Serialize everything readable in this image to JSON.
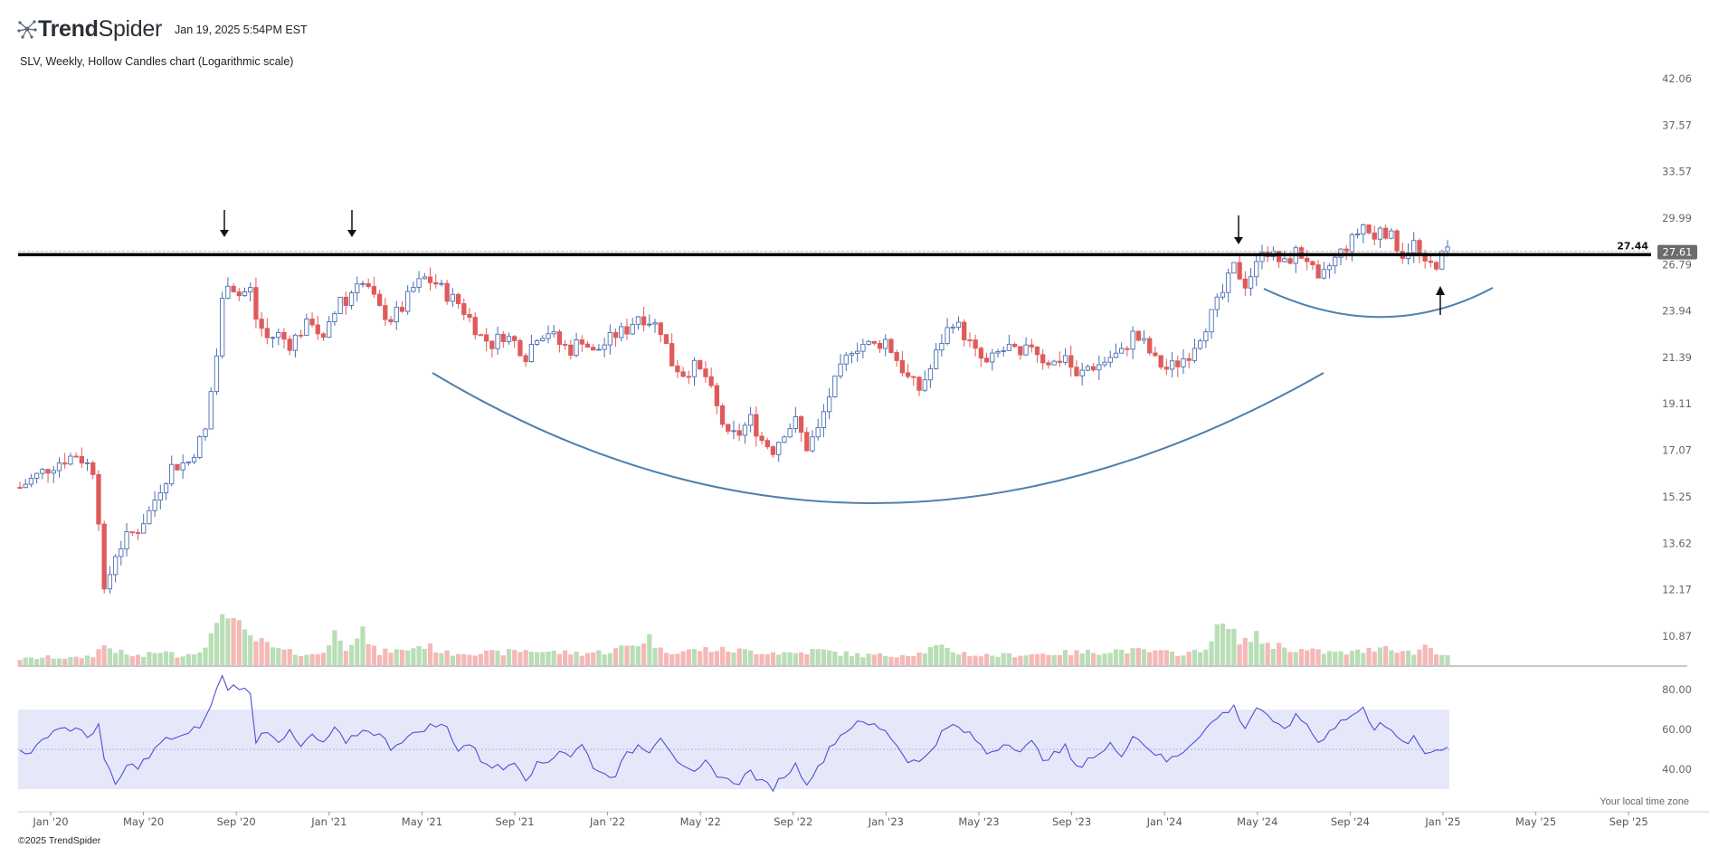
{
  "header": {
    "brand_bold": "Trend",
    "brand_light": "Spider",
    "timestamp": "Jan 19, 2025 5:54PM EST",
    "chart_title": "SLV, Weekly, Hollow Candles chart (Logarithmic scale)"
  },
  "footer": {
    "copyright": "©2025 TrendSpider",
    "timezone_note": "Your local time zone"
  },
  "colors": {
    "up": "#4a6fb0",
    "down": "#e05a5a",
    "vol_up": "#b9deb6",
    "vol_down": "#f5b8b8",
    "rsi_line": "#4a50d6",
    "rsi_band": "#e6e8fa",
    "cup_curve": "#4f7fab",
    "resistance": "#000000",
    "price_tag": "#6b6b6b"
  },
  "chart_data": {
    "type": "candlestick",
    "title": "SLV, Weekly, Hollow Candles chart (Logarithmic scale)",
    "scale": "log",
    "y_ticks": [
      "42.06",
      "37.57",
      "33.57",
      "29.99",
      "26.79",
      "23.94",
      "21.39",
      "19.11",
      "17.07",
      "15.25",
      "13.62",
      "12.17",
      "10.87"
    ],
    "y_tick_values": [
      42.06,
      37.57,
      33.57,
      29.99,
      26.79,
      23.94,
      21.39,
      19.11,
      17.07,
      15.25,
      13.62,
      12.17,
      10.87
    ],
    "x_ticks": [
      "Jan '20",
      "May '20",
      "Sep '20",
      "Jan '21",
      "May '21",
      "Sep '21",
      "Jan '22",
      "May '22",
      "Sep '22",
      "Jan '23",
      "May '23",
      "Sep '23",
      "Jan '24",
      "May '24",
      "Sep '24",
      "Jan '25",
      "May '25",
      "Sep '25"
    ],
    "resistance_level": 27.44,
    "resistance_label": "27.44",
    "last_price": 27.61,
    "last_price_label": "27.61",
    "rsi_ticks": [
      "80.00",
      "60.00",
      "40.00"
    ],
    "rsi_tick_values": [
      80,
      60,
      40
    ],
    "rsi_band": [
      70,
      30
    ],
    "rsi_mid": 50,
    "price_anchors": [
      [
        0,
        15.6
      ],
      [
        4,
        16.2
      ],
      [
        7,
        16.6
      ],
      [
        10,
        16.9
      ],
      [
        13,
        16.3
      ],
      [
        14,
        14.5
      ],
      [
        15,
        12.0
      ],
      [
        17,
        13.3
      ],
      [
        19,
        13.8
      ],
      [
        21,
        14.1
      ],
      [
        23,
        14.7
      ],
      [
        25,
        15.6
      ],
      [
        27,
        16.4
      ],
      [
        30,
        16.6
      ],
      [
        33,
        17.9
      ],
      [
        35,
        21.5
      ],
      [
        36,
        24.5
      ],
      [
        37,
        25.8
      ],
      [
        39,
        24.9
      ],
      [
        41,
        25.2
      ],
      [
        42,
        23.5
      ],
      [
        44,
        22.4
      ],
      [
        46,
        22.6
      ],
      [
        48,
        22.1
      ],
      [
        50,
        22.8
      ],
      [
        52,
        23.4
      ],
      [
        54,
        22.2
      ],
      [
        56,
        23.8
      ],
      [
        57,
        24.9
      ],
      [
        58,
        24.3
      ],
      [
        60,
        25.9
      ],
      [
        62,
        25.2
      ],
      [
        64,
        24.0
      ],
      [
        66,
        23.5
      ],
      [
        68,
        24.1
      ],
      [
        70,
        25.3
      ],
      [
        72,
        25.9
      ],
      [
        74,
        25.6
      ],
      [
        76,
        24.9
      ],
      [
        78,
        24.4
      ],
      [
        80,
        23.5
      ],
      [
        82,
        22.5
      ],
      [
        84,
        22.1
      ],
      [
        86,
        22.6
      ],
      [
        88,
        22.2
      ],
      [
        90,
        21.5
      ],
      [
        92,
        22.6
      ],
      [
        94,
        22.8
      ],
      [
        96,
        22.1
      ],
      [
        98,
        21.8
      ],
      [
        100,
        22.4
      ],
      [
        102,
        21.6
      ],
      [
        104,
        22.1
      ],
      [
        106,
        22.6
      ],
      [
        108,
        22.9
      ],
      [
        110,
        23.7
      ],
      [
        112,
        23.4
      ],
      [
        114,
        22.9
      ],
      [
        116,
        21.1
      ],
      [
        118,
        20.6
      ],
      [
        120,
        20.9
      ],
      [
        122,
        20.4
      ],
      [
        124,
        18.9
      ],
      [
        126,
        17.6
      ],
      [
        128,
        17.8
      ],
      [
        130,
        18.4
      ],
      [
        132,
        17.5
      ],
      [
        134,
        17.1
      ],
      [
        136,
        17.9
      ],
      [
        138,
        18.3
      ],
      [
        140,
        17.2
      ],
      [
        142,
        17.9
      ],
      [
        144,
        19.5
      ],
      [
        146,
        20.7
      ],
      [
        148,
        21.9
      ],
      [
        150,
        22.1
      ],
      [
        152,
        22.0
      ],
      [
        154,
        22.3
      ],
      [
        156,
        21.3
      ],
      [
        158,
        20.3
      ],
      [
        160,
        19.8
      ],
      [
        162,
        20.8
      ],
      [
        164,
        22.3
      ],
      [
        166,
        23.4
      ],
      [
        168,
        22.6
      ],
      [
        170,
        21.6
      ],
      [
        172,
        21.0
      ],
      [
        174,
        21.6
      ],
      [
        176,
        21.9
      ],
      [
        178,
        21.3
      ],
      [
        180,
        22.1
      ],
      [
        182,
        21.3
      ],
      [
        184,
        21.1
      ],
      [
        186,
        21.5
      ],
      [
        188,
        20.3
      ],
      [
        190,
        20.9
      ],
      [
        192,
        21.0
      ],
      [
        194,
        21.4
      ],
      [
        196,
        21.6
      ],
      [
        198,
        22.6
      ],
      [
        200,
        22.1
      ],
      [
        202,
        21.2
      ],
      [
        204,
        20.8
      ],
      [
        206,
        21.1
      ],
      [
        208,
        21.6
      ],
      [
        210,
        22.6
      ],
      [
        212,
        23.7
      ],
      [
        214,
        25.0
      ],
      [
        216,
        26.6
      ],
      [
        218,
        25.6
      ],
      [
        220,
        26.7
      ],
      [
        221,
        28.0
      ],
      [
        223,
        27.3
      ],
      [
        225,
        26.8
      ],
      [
        227,
        27.6
      ],
      [
        229,
        27.2
      ],
      [
        231,
        25.5
      ],
      [
        233,
        26.7
      ],
      [
        235,
        27.6
      ],
      [
        237,
        28.4
      ],
      [
        239,
        29.5
      ],
      [
        241,
        28.4
      ],
      [
        242,
        29.5
      ],
      [
        244,
        28.6
      ],
      [
        246,
        27.5
      ],
      [
        248,
        28.2
      ],
      [
        250,
        26.6
      ],
      [
        252,
        26.9
      ],
      [
        254,
        27.7
      ]
    ],
    "rsi_anchors": [
      [
        0,
        51
      ],
      [
        2,
        47
      ],
      [
        5,
        58
      ],
      [
        7,
        61
      ],
      [
        10,
        60
      ],
      [
        12,
        56
      ],
      [
        14,
        63
      ],
      [
        15,
        44
      ],
      [
        17,
        32
      ],
      [
        19,
        41
      ],
      [
        21,
        42
      ],
      [
        23,
        46
      ],
      [
        25,
        53
      ],
      [
        27,
        56
      ],
      [
        30,
        57
      ],
      [
        33,
        65
      ],
      [
        35,
        80
      ],
      [
        36,
        86
      ],
      [
        37,
        81
      ],
      [
        39,
        82
      ],
      [
        41,
        77
      ],
      [
        42,
        55
      ],
      [
        44,
        60
      ],
      [
        46,
        55
      ],
      [
        48,
        58
      ],
      [
        50,
        51
      ],
      [
        52,
        57
      ],
      [
        54,
        52
      ],
      [
        56,
        61
      ],
      [
        58,
        52
      ],
      [
        60,
        58
      ],
      [
        62,
        60
      ],
      [
        64,
        57
      ],
      [
        66,
        51
      ],
      [
        68,
        55
      ],
      [
        70,
        57
      ],
      [
        72,
        61
      ],
      [
        74,
        62
      ],
      [
        76,
        61
      ],
      [
        78,
        50
      ],
      [
        80,
        53
      ],
      [
        82,
        45
      ],
      [
        84,
        42
      ],
      [
        86,
        40
      ],
      [
        88,
        45
      ],
      [
        90,
        36
      ],
      [
        92,
        42
      ],
      [
        94,
        44
      ],
      [
        96,
        50
      ],
      [
        98,
        47
      ],
      [
        100,
        52
      ],
      [
        102,
        42
      ],
      [
        104,
        37
      ],
      [
        106,
        38
      ],
      [
        108,
        47
      ],
      [
        110,
        52
      ],
      [
        112,
        50
      ],
      [
        114,
        57
      ],
      [
        116,
        49
      ],
      [
        118,
        40
      ],
      [
        120,
        37
      ],
      [
        122,
        43
      ],
      [
        124,
        38
      ],
      [
        126,
        34
      ],
      [
        128,
        34
      ],
      [
        130,
        39
      ],
      [
        132,
        33
      ],
      [
        134,
        31
      ],
      [
        136,
        37
      ],
      [
        138,
        42
      ],
      [
        140,
        34
      ],
      [
        142,
        40
      ],
      [
        144,
        51
      ],
      [
        146,
        57
      ],
      [
        148,
        62
      ],
      [
        150,
        63
      ],
      [
        152,
        62
      ],
      [
        154,
        60
      ],
      [
        156,
        52
      ],
      [
        158,
        45
      ],
      [
        160,
        43
      ],
      [
        162,
        50
      ],
      [
        164,
        58
      ],
      [
        166,
        62
      ],
      [
        168,
        59
      ],
      [
        170,
        55
      ],
      [
        172,
        48
      ],
      [
        174,
        51
      ],
      [
        176,
        54
      ],
      [
        178,
        49
      ],
      [
        180,
        53
      ],
      [
        182,
        46
      ],
      [
        184,
        47
      ],
      [
        186,
        51
      ],
      [
        188,
        40
      ],
      [
        190,
        46
      ],
      [
        192,
        47
      ],
      [
        194,
        52
      ],
      [
        196,
        48
      ],
      [
        198,
        57
      ],
      [
        200,
        53
      ],
      [
        202,
        48
      ],
      [
        204,
        44
      ],
      [
        206,
        47
      ],
      [
        208,
        52
      ],
      [
        210,
        58
      ],
      [
        212,
        63
      ],
      [
        214,
        68
      ],
      [
        216,
        71
      ],
      [
        218,
        61
      ],
      [
        220,
        71
      ],
      [
        221,
        70
      ],
      [
        223,
        62
      ],
      [
        225,
        61
      ],
      [
        227,
        66
      ],
      [
        229,
        63
      ],
      [
        231,
        53
      ],
      [
        233,
        60
      ],
      [
        235,
        64
      ],
      [
        237,
        67
      ],
      [
        239,
        70
      ],
      [
        241,
        61
      ],
      [
        242,
        65
      ],
      [
        244,
        58
      ],
      [
        246,
        53
      ],
      [
        248,
        55
      ],
      [
        250,
        48
      ],
      [
        252,
        50
      ],
      [
        254,
        52
      ]
    ],
    "volume_anchors": [
      [
        0,
        0.06
      ],
      [
        5,
        0.08
      ],
      [
        10,
        0.07
      ],
      [
        13,
        0.1
      ],
      [
        15,
        0.2
      ],
      [
        17,
        0.15
      ],
      [
        19,
        0.1
      ],
      [
        22,
        0.09
      ],
      [
        25,
        0.14
      ],
      [
        28,
        0.1
      ],
      [
        31,
        0.12
      ],
      [
        33,
        0.22
      ],
      [
        35,
        0.35
      ],
      [
        36,
        0.55
      ],
      [
        37,
        0.6
      ],
      [
        38,
        0.45
      ],
      [
        40,
        0.3
      ],
      [
        42,
        0.25
      ],
      [
        44,
        0.2
      ],
      [
        46,
        0.15
      ],
      [
        48,
        0.13
      ],
      [
        50,
        0.12
      ],
      [
        52,
        0.1
      ],
      [
        54,
        0.13
      ],
      [
        56,
        0.35
      ],
      [
        57,
        0.22
      ],
      [
        58,
        0.18
      ],
      [
        60,
        0.35
      ],
      [
        61,
        0.45
      ],
      [
        62,
        0.2
      ],
      [
        64,
        0.12
      ],
      [
        66,
        0.15
      ],
      [
        68,
        0.14
      ],
      [
        70,
        0.18
      ],
      [
        72,
        0.2
      ],
      [
        74,
        0.16
      ],
      [
        76,
        0.12
      ],
      [
        80,
        0.13
      ],
      [
        85,
        0.12
      ],
      [
        90,
        0.15
      ],
      [
        95,
        0.13
      ],
      [
        100,
        0.12
      ],
      [
        105,
        0.14
      ],
      [
        110,
        0.22
      ],
      [
        112,
        0.28
      ],
      [
        114,
        0.15
      ],
      [
        118,
        0.14
      ],
      [
        122,
        0.16
      ],
      [
        126,
        0.15
      ],
      [
        130,
        0.14
      ],
      [
        134,
        0.13
      ],
      [
        138,
        0.12
      ],
      [
        142,
        0.15
      ],
      [
        146,
        0.12
      ],
      [
        150,
        0.1
      ],
      [
        155,
        0.1
      ],
      [
        160,
        0.12
      ],
      [
        163,
        0.18
      ],
      [
        166,
        0.14
      ],
      [
        170,
        0.1
      ],
      [
        175,
        0.1
      ],
      [
        180,
        0.11
      ],
      [
        185,
        0.12
      ],
      [
        190,
        0.13
      ],
      [
        195,
        0.15
      ],
      [
        200,
        0.14
      ],
      [
        205,
        0.12
      ],
      [
        210,
        0.13
      ],
      [
        212,
        0.28
      ],
      [
        214,
        0.4
      ],
      [
        216,
        0.3
      ],
      [
        218,
        0.25
      ],
      [
        220,
        0.28
      ],
      [
        222,
        0.22
      ],
      [
        225,
        0.18
      ],
      [
        228,
        0.15
      ],
      [
        232,
        0.13
      ],
      [
        236,
        0.12
      ],
      [
        240,
        0.15
      ],
      [
        242,
        0.2
      ],
      [
        244,
        0.18
      ],
      [
        246,
        0.14
      ],
      [
        248,
        0.12
      ],
      [
        250,
        0.2
      ],
      [
        252,
        0.14
      ],
      [
        254,
        0.1
      ]
    ]
  }
}
